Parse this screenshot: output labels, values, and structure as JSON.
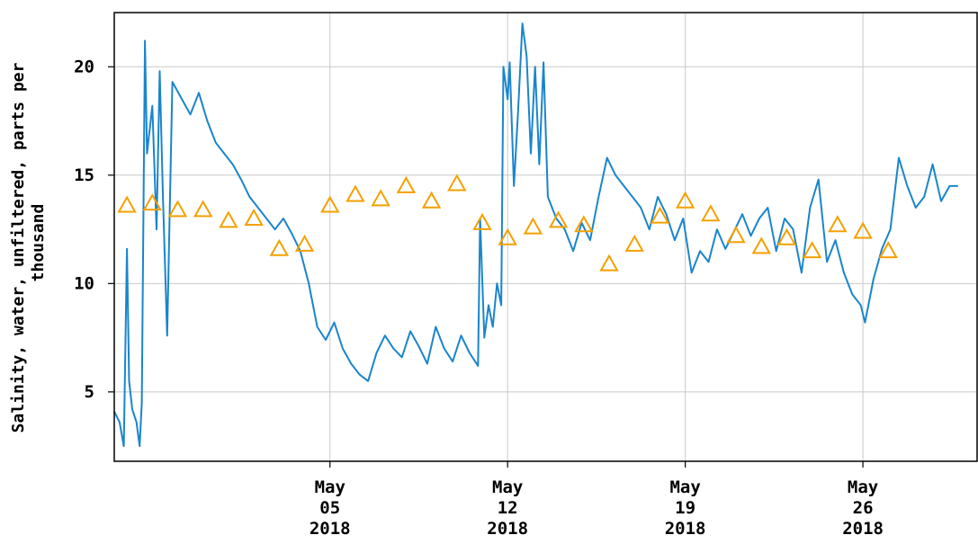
{
  "chart_data": {
    "type": "line",
    "ylabel_lines": [
      "Salinity, water, unfiltered, parts per",
      "thousand"
    ],
    "xlabel": "",
    "ylim": [
      1.8,
      22.5
    ],
    "x_range": [
      "2018-04-26T12:00",
      "2018-05-30T12:00"
    ],
    "grid": true,
    "y_ticks": [
      5,
      10,
      15,
      20
    ],
    "x_ticks": [
      {
        "date": "2018-05-05",
        "lines": [
          "May",
          "05",
          "2018"
        ]
      },
      {
        "date": "2018-05-12",
        "lines": [
          "May",
          "12",
          "2018"
        ]
      },
      {
        "date": "2018-05-19",
        "lines": [
          "May",
          "19",
          "2018"
        ]
      },
      {
        "date": "2018-05-26",
        "lines": [
          "May",
          "26",
          "2018"
        ]
      }
    ],
    "colors": {
      "line": "#1a85cc",
      "marker": "#f5a000",
      "grid": "#c8c8c8",
      "frame": "#000000"
    },
    "series": [
      {
        "style": "line",
        "points": [
          [
            "2018-04-26T12:00",
            4.1
          ],
          [
            "2018-04-26T17:00",
            3.6
          ],
          [
            "2018-04-26T21:00",
            2.5
          ],
          [
            "2018-04-27T00:00",
            11.6
          ],
          [
            "2018-04-27T02:00",
            5.5
          ],
          [
            "2018-04-27T05:00",
            4.2
          ],
          [
            "2018-04-27T09:00",
            3.6
          ],
          [
            "2018-04-27T12:00",
            2.5
          ],
          [
            "2018-04-27T14:00",
            4.5
          ],
          [
            "2018-04-27T17:00",
            21.2
          ],
          [
            "2018-04-27T19:00",
            16.0
          ],
          [
            "2018-04-28T00:00",
            18.2
          ],
          [
            "2018-04-28T04:00",
            12.5
          ],
          [
            "2018-04-28T07:00",
            19.8
          ],
          [
            "2018-04-28T10:00",
            14.0
          ],
          [
            "2018-04-28T14:00",
            7.6
          ],
          [
            "2018-04-28T19:00",
            19.3
          ],
          [
            "2018-04-29T04:00",
            18.5
          ],
          [
            "2018-04-29T12:00",
            17.8
          ],
          [
            "2018-04-29T20:00",
            18.8
          ],
          [
            "2018-04-30T04:00",
            17.5
          ],
          [
            "2018-04-30T12:00",
            16.5
          ],
          [
            "2018-04-30T20:00",
            16.0
          ],
          [
            "2018-05-01T04:00",
            15.5
          ],
          [
            "2018-05-01T12:00",
            14.8
          ],
          [
            "2018-05-01T20:00",
            14.0
          ],
          [
            "2018-05-02T04:00",
            13.5
          ],
          [
            "2018-05-02T12:00",
            13.0
          ],
          [
            "2018-05-02T20:00",
            12.5
          ],
          [
            "2018-05-03T04:00",
            13.0
          ],
          [
            "2018-05-03T12:00",
            12.3
          ],
          [
            "2018-05-03T20:00",
            11.5
          ],
          [
            "2018-05-04T04:00",
            10.0
          ],
          [
            "2018-05-04T12:00",
            8.0
          ],
          [
            "2018-05-04T20:00",
            7.4
          ],
          [
            "2018-05-05T04:00",
            8.2
          ],
          [
            "2018-05-05T12:00",
            7.0
          ],
          [
            "2018-05-05T20:00",
            6.3
          ],
          [
            "2018-05-06T04:00",
            5.8
          ],
          [
            "2018-05-06T12:00",
            5.5
          ],
          [
            "2018-05-06T20:00",
            6.8
          ],
          [
            "2018-05-07T04:00",
            7.6
          ],
          [
            "2018-05-07T12:00",
            7.0
          ],
          [
            "2018-05-07T20:00",
            6.6
          ],
          [
            "2018-05-08T04:00",
            7.8
          ],
          [
            "2018-05-08T12:00",
            7.1
          ],
          [
            "2018-05-08T20:00",
            6.3
          ],
          [
            "2018-05-09T04:00",
            8.0
          ],
          [
            "2018-05-09T12:00",
            7.0
          ],
          [
            "2018-05-09T20:00",
            6.4
          ],
          [
            "2018-05-10T04:00",
            7.6
          ],
          [
            "2018-05-10T12:00",
            6.8
          ],
          [
            "2018-05-10T20:00",
            6.2
          ],
          [
            "2018-05-10T22:00",
            13.0
          ],
          [
            "2018-05-11T02:00",
            7.5
          ],
          [
            "2018-05-11T06:00",
            9.0
          ],
          [
            "2018-05-11T10:00",
            8.0
          ],
          [
            "2018-05-11T14:00",
            10.0
          ],
          [
            "2018-05-11T18:00",
            9.0
          ],
          [
            "2018-05-11T20:00",
            20.0
          ],
          [
            "2018-05-12T00:00",
            18.5
          ],
          [
            "2018-05-12T02:00",
            20.2
          ],
          [
            "2018-05-12T06:00",
            14.5
          ],
          [
            "2018-05-12T10:00",
            18.0
          ],
          [
            "2018-05-12T14:00",
            22.0
          ],
          [
            "2018-05-12T18:00",
            20.5
          ],
          [
            "2018-05-12T22:00",
            16.0
          ],
          [
            "2018-05-13T02:00",
            20.0
          ],
          [
            "2018-05-13T06:00",
            15.5
          ],
          [
            "2018-05-13T10:00",
            20.2
          ],
          [
            "2018-05-13T14:00",
            14.0
          ],
          [
            "2018-05-13T22:00",
            13.0
          ],
          [
            "2018-05-14T06:00",
            12.5
          ],
          [
            "2018-05-14T14:00",
            11.5
          ],
          [
            "2018-05-14T22:00",
            12.8
          ],
          [
            "2018-05-15T06:00",
            12.0
          ],
          [
            "2018-05-15T14:00",
            14.0
          ],
          [
            "2018-05-15T22:00",
            15.8
          ],
          [
            "2018-05-16T06:00",
            15.0
          ],
          [
            "2018-05-16T14:00",
            14.5
          ],
          [
            "2018-05-16T22:00",
            14.0
          ],
          [
            "2018-05-17T06:00",
            13.5
          ],
          [
            "2018-05-17T14:00",
            12.5
          ],
          [
            "2018-05-17T22:00",
            14.0
          ],
          [
            "2018-05-18T06:00",
            13.2
          ],
          [
            "2018-05-18T14:00",
            12.0
          ],
          [
            "2018-05-18T22:00",
            13.0
          ],
          [
            "2018-05-19T06:00",
            10.5
          ],
          [
            "2018-05-19T14:00",
            11.5
          ],
          [
            "2018-05-19T22:00",
            11.0
          ],
          [
            "2018-05-20T06:00",
            12.5
          ],
          [
            "2018-05-20T14:00",
            11.6
          ],
          [
            "2018-05-20T22:00",
            12.4
          ],
          [
            "2018-05-21T06:00",
            13.2
          ],
          [
            "2018-05-21T14:00",
            12.2
          ],
          [
            "2018-05-21T22:00",
            13.0
          ],
          [
            "2018-05-22T06:00",
            13.5
          ],
          [
            "2018-05-22T14:00",
            11.5
          ],
          [
            "2018-05-22T22:00",
            13.0
          ],
          [
            "2018-05-23T06:00",
            12.5
          ],
          [
            "2018-05-23T14:00",
            10.5
          ],
          [
            "2018-05-23T22:00",
            13.5
          ],
          [
            "2018-05-24T06:00",
            14.8
          ],
          [
            "2018-05-24T14:00",
            11.0
          ],
          [
            "2018-05-24T22:00",
            12.0
          ],
          [
            "2018-05-25T06:00",
            10.5
          ],
          [
            "2018-05-25T14:00",
            9.5
          ],
          [
            "2018-05-25T22:00",
            9.0
          ],
          [
            "2018-05-26T02:00",
            8.2
          ],
          [
            "2018-05-26T10:00",
            10.2
          ],
          [
            "2018-05-26T18:00",
            11.6
          ],
          [
            "2018-05-27T02:00",
            12.5
          ],
          [
            "2018-05-27T10:00",
            15.8
          ],
          [
            "2018-05-27T18:00",
            14.5
          ],
          [
            "2018-05-28T02:00",
            13.5
          ],
          [
            "2018-05-28T10:00",
            14.0
          ],
          [
            "2018-05-28T18:00",
            15.5
          ],
          [
            "2018-05-29T02:00",
            13.8
          ],
          [
            "2018-05-29T10:00",
            14.5
          ],
          [
            "2018-05-29T18:00",
            14.5
          ]
        ]
      },
      {
        "style": "marker",
        "marker": "triangle",
        "points": [
          [
            "2018-04-27T00:00",
            13.6
          ],
          [
            "2018-04-28T00:00",
            13.7
          ],
          [
            "2018-04-29T00:00",
            13.4
          ],
          [
            "2018-04-30T00:00",
            13.4
          ],
          [
            "2018-05-01T00:00",
            12.9
          ],
          [
            "2018-05-02T00:00",
            13.0
          ],
          [
            "2018-05-03T00:00",
            11.6
          ],
          [
            "2018-05-04T00:00",
            11.8
          ],
          [
            "2018-05-05T00:00",
            13.6
          ],
          [
            "2018-05-06T00:00",
            14.1
          ],
          [
            "2018-05-07T00:00",
            13.9
          ],
          [
            "2018-05-08T00:00",
            14.5
          ],
          [
            "2018-05-09T00:00",
            13.8
          ],
          [
            "2018-05-10T00:00",
            14.6
          ],
          [
            "2018-05-11T00:00",
            12.8
          ],
          [
            "2018-05-12T00:00",
            12.1
          ],
          [
            "2018-05-13T00:00",
            12.6
          ],
          [
            "2018-05-14T00:00",
            12.9
          ],
          [
            "2018-05-15T00:00",
            12.7
          ],
          [
            "2018-05-16T00:00",
            10.9
          ],
          [
            "2018-05-17T00:00",
            11.8
          ],
          [
            "2018-05-18T00:00",
            13.1
          ],
          [
            "2018-05-19T00:00",
            13.8
          ],
          [
            "2018-05-20T00:00",
            13.2
          ],
          [
            "2018-05-21T00:00",
            12.2
          ],
          [
            "2018-05-22T00:00",
            11.7
          ],
          [
            "2018-05-23T00:00",
            12.1
          ],
          [
            "2018-05-24T00:00",
            11.5
          ],
          [
            "2018-05-25T00:00",
            12.7
          ],
          [
            "2018-05-26T00:00",
            12.4
          ],
          [
            "2018-05-27T00:00",
            11.5
          ]
        ]
      }
    ]
  }
}
